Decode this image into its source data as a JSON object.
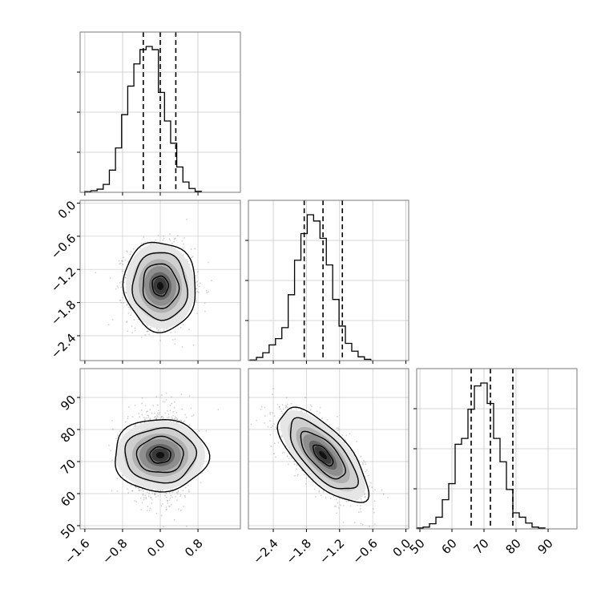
{
  "chart_data": {
    "type": "corner",
    "title": "",
    "parameters": [
      {
        "index": 0,
        "range": [
          -1.7,
          1.7
        ],
        "ticks": [
          "-1.6",
          "-0.8",
          "0.0",
          "0.8"
        ],
        "tick_values": [
          -1.6,
          -0.8,
          0.0,
          0.8
        ],
        "quantiles": [
          -0.36,
          0.0,
          0.33
        ]
      },
      {
        "index": 1,
        "range": [
          -2.85,
          0.05
        ],
        "ticks": [
          "-2.4",
          "-1.8",
          "-1.2",
          "-0.6",
          "0.0"
        ],
        "tick_values": [
          -2.4,
          -1.8,
          -1.2,
          -0.6,
          0.0
        ],
        "quantiles": [
          -1.84,
          -1.5,
          -1.15
        ]
      },
      {
        "index": 2,
        "range": [
          49,
          99
        ],
        "ticks": [
          "50",
          "60",
          "70",
          "80",
          "90"
        ],
        "tick_values": [
          50,
          60,
          70,
          80,
          90
        ],
        "quantiles": [
          66,
          72,
          79
        ]
      }
    ],
    "histograms": [
      {
        "edges_start": -1.6,
        "bin_width": 0.13,
        "counts": [
          0.004,
          0.01,
          0.02,
          0.05,
          0.14,
          0.28,
          0.49,
          0.67,
          0.81,
          0.9,
          0.92,
          0.9,
          0.63,
          0.45,
          0.31,
          0.16,
          0.065,
          0.024,
          0.006
        ]
      },
      {
        "edges_start": -2.82,
        "bin_width": 0.115,
        "counts": [
          0.004,
          0.02,
          0.05,
          0.1,
          0.14,
          0.21,
          0.42,
          0.64,
          0.81,
          0.93,
          0.89,
          0.78,
          0.61,
          0.39,
          0.22,
          0.11,
          0.06,
          0.024,
          0.008
        ]
      },
      {
        "edges_start": 49.0,
        "bin_width": 2.0,
        "counts": [
          0.006,
          0.012,
          0.035,
          0.08,
          0.2,
          0.31,
          0.58,
          0.62,
          0.82,
          0.98,
          1.0,
          0.86,
          0.62,
          0.46,
          0.27,
          0.11,
          0.08,
          0.04,
          0.012,
          0.006
        ]
      }
    ],
    "scatter_2d": [
      {
        "x_param": 0,
        "y_param": 1,
        "mean": [
          0.0,
          -1.5
        ],
        "sd": [
          0.34,
          0.36
        ],
        "correlation": -0.05,
        "contours": [
          "outer",
          "mid",
          "inner",
          "core"
        ]
      },
      {
        "x_param": 0,
        "y_param": 2,
        "mean": [
          0.0,
          72.0
        ],
        "sd": [
          0.34,
          6.5
        ],
        "correlation": 0.0,
        "contours": [
          "outer",
          "mid",
          "inner",
          "core"
        ]
      },
      {
        "x_param": 1,
        "y_param": 2,
        "mean": [
          -1.5,
          72.0
        ],
        "sd": [
          0.36,
          6.5
        ],
        "correlation": -0.7,
        "contours": [
          "outer",
          "mid",
          "inner",
          "core"
        ]
      }
    ],
    "grid": true,
    "legend": "none"
  }
}
